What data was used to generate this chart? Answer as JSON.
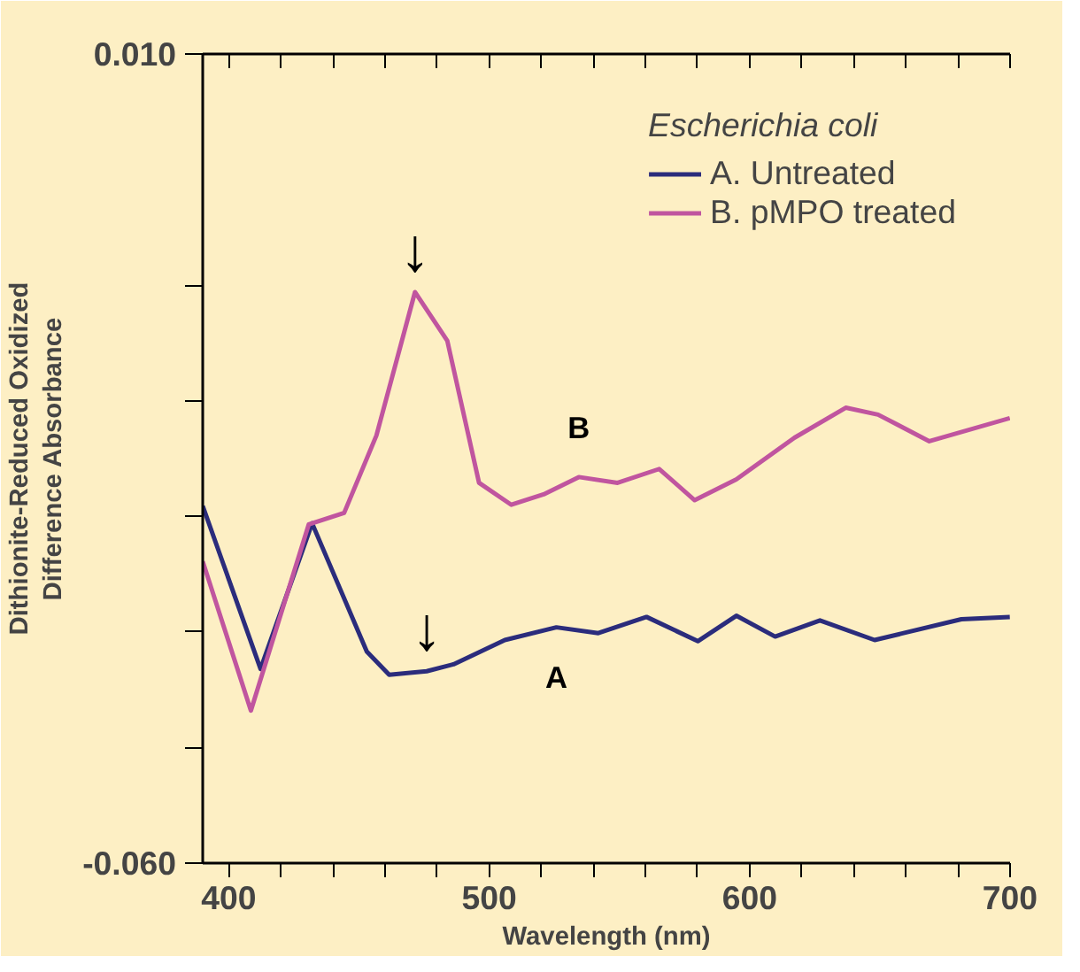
{
  "chart_data": {
    "type": "line",
    "xlabel": "Wavelength (nm)",
    "ylabel": "Dithionite-Reduced Oxidized\nDifference Absorbance",
    "legend_title": "Escherichia coli",
    "legend": "top right",
    "grid": false,
    "xlim": [
      390,
      700
    ],
    "xticks": [
      {
        "value": 400,
        "label": "400"
      },
      {
        "value": 420,
        "label": null
      },
      {
        "value": 440,
        "label": null
      },
      {
        "value": 460,
        "label": null
      },
      {
        "value": 480,
        "label": null
      },
      {
        "value": 500,
        "label": "500"
      },
      {
        "value": 520,
        "label": null
      },
      {
        "value": 540,
        "label": null
      },
      {
        "value": 560,
        "label": null
      },
      {
        "value": 580,
        "label": null
      },
      {
        "value": 600,
        "label": "600"
      },
      {
        "value": 620,
        "label": null
      },
      {
        "value": 640,
        "label": null
      },
      {
        "value": 660,
        "label": null
      },
      {
        "value": 680,
        "label": null
      },
      {
        "value": 700,
        "label": "700"
      }
    ],
    "ylim": [
      -0.06,
      0.01
    ],
    "yticks": [
      {
        "value": -0.06,
        "label": "-0.060"
      },
      {
        "value": -0.05,
        "label": null
      },
      {
        "value": -0.04,
        "label": null
      },
      {
        "value": -0.03,
        "label": null
      },
      {
        "value": -0.02,
        "label": null
      },
      {
        "value": -0.01,
        "label": null
      },
      {
        "value": 0.01,
        "label": "0.010"
      }
    ],
    "series": [
      {
        "name": "A. Untreated",
        "color": "#2b2c7c",
        "x": [
          390,
          412.2,
          432,
          453,
          461.6,
          476,
          486.3,
          506,
          525.8,
          541.9,
          560.4,
          580.1,
          594.9,
          609.8,
          627,
          648,
          681.3,
          699.9
        ],
        "values": [
          -0.0291,
          -0.0432,
          -0.0306,
          -0.0417,
          -0.0437,
          -0.0434,
          -0.0428,
          -0.0407,
          -0.0396,
          -0.0401,
          -0.0387,
          -0.0408,
          -0.0386,
          -0.0404,
          -0.039,
          -0.0407,
          -0.0389,
          -0.0387
        ]
      },
      {
        "name": "B. pMPO treated",
        "color": "#c0559f",
        "x": [
          390,
          408.5,
          430.7,
          444.3,
          456.7,
          471.5,
          483.9,
          496.1,
          508.5,
          520.9,
          534.4,
          549.3,
          565.3,
          578.9,
          594.9,
          617.2,
          636.9,
          649.3,
          669,
          699.9
        ],
        "values": [
          -0.0339,
          -0.0468,
          -0.0307,
          -0.0297,
          -0.023,
          -0.0106,
          -0.0148,
          -0.0271,
          -0.029,
          -0.0281,
          -0.0266,
          -0.0271,
          -0.0259,
          -0.0286,
          -0.0268,
          -0.0232,
          -0.0206,
          -0.0212,
          -0.0235,
          -0.0215
        ]
      }
    ],
    "annotations": [
      "A",
      "B",
      {
        "text": "↓",
        "x": 471.5,
        "y": -0.0106
      },
      {
        "text": "↓",
        "x": 476,
        "y": -0.0434
      }
    ]
  }
}
